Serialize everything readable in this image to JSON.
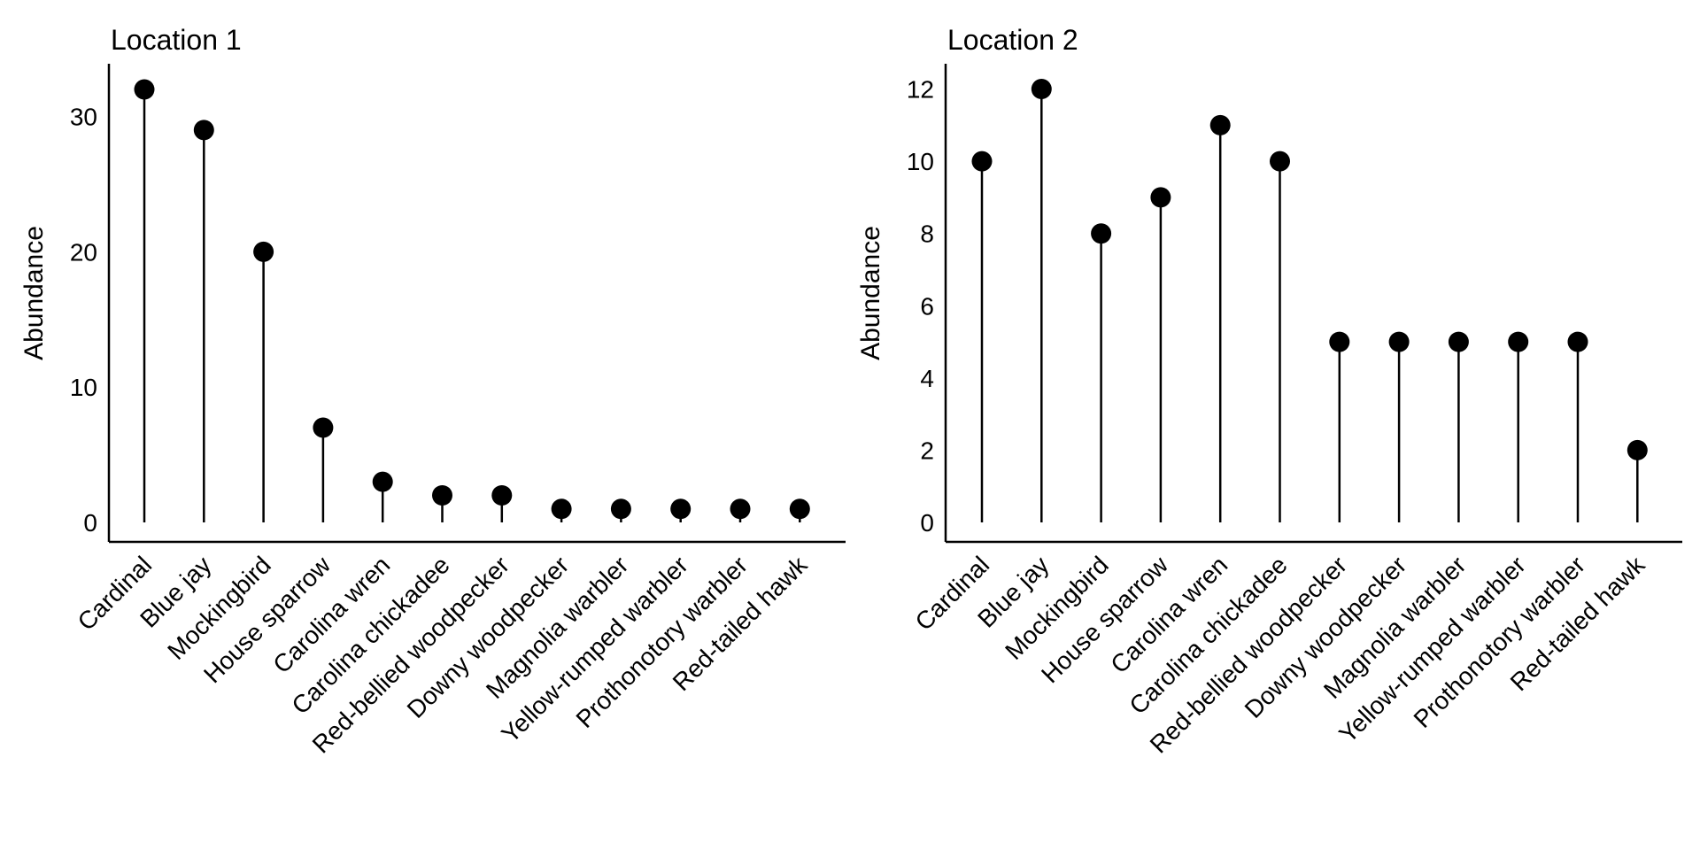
{
  "page": {
    "background_color": "#ffffff",
    "foreground_color": "#000000"
  },
  "chart_data": [
    {
      "type": "lollipop",
      "title": "Location 1",
      "xlabel": "",
      "ylabel": "Abundance",
      "categories": [
        "Cardinal",
        "Blue jay",
        "Mockingbird",
        "House sparrow",
        "Carolina wren",
        "Carolina chickadee",
        "Red-bellied woodpecker",
        "Downy woodpecker",
        "Magnolia warbler",
        "Yellow-rumped warbler",
        "Prothonotory warbler",
        "Red-tailed hawk"
      ],
      "values": [
        32,
        29,
        20,
        7,
        3,
        2,
        2,
        1,
        1,
        1,
        1,
        1
      ],
      "yticks": [
        0,
        10,
        20,
        30
      ],
      "ylim": [
        0,
        33.9
      ],
      "grid": false,
      "legend": null,
      "point_color": "#000000",
      "line_color": "#000000",
      "x_tick_rotation_degrees": 45
    },
    {
      "type": "lollipop",
      "title": "Location 2",
      "xlabel": "",
      "ylabel": "Abundance",
      "categories": [
        "Cardinal",
        "Blue jay",
        "Mockingbird",
        "House sparrow",
        "Carolina wren",
        "Carolina chickadee",
        "Red-bellied woodpecker",
        "Downy woodpecker",
        "Magnolia warbler",
        "Yellow-rumped warbler",
        "Prothonotory warbler",
        "Red-tailed hawk"
      ],
      "values": [
        10,
        12,
        8,
        9,
        11,
        10,
        5,
        5,
        5,
        5,
        5,
        2
      ],
      "yticks": [
        0,
        2,
        4,
        6,
        8,
        10,
        12
      ],
      "ylim": [
        0,
        12.7
      ],
      "grid": false,
      "legend": null,
      "point_color": "#000000",
      "line_color": "#000000",
      "x_tick_rotation_degrees": 45
    }
  ]
}
